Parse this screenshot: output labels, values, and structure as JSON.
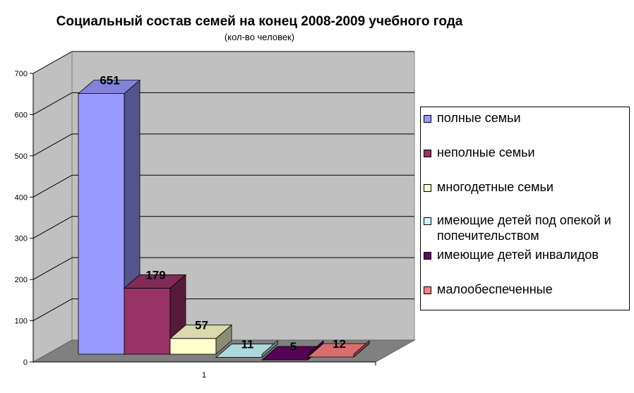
{
  "chart_data": {
    "type": "bar",
    "title": "Социальный состав семей на конец 2008-2009 учебного года",
    "subtitle": "(кол-во человек)",
    "categories": [
      "1"
    ],
    "ylim": [
      0,
      700
    ],
    "yticks": [
      0,
      100,
      200,
      300,
      400,
      500,
      600,
      700
    ],
    "grid": true,
    "legend_position": "right",
    "series": [
      {
        "name": "полные семьи",
        "values": [
          651
        ],
        "color": "#9999ff"
      },
      {
        "name": "неполные семьи",
        "values": [
          179
        ],
        "color": "#993366"
      },
      {
        "name": "многодетные семьи",
        "values": [
          57
        ],
        "color": "#ffffcc"
      },
      {
        "name": "имеющие детей под опекой и попечительством",
        "values": [
          11
        ],
        "color": "#ccffff"
      },
      {
        "name": "имеющие детей инвалидов",
        "values": [
          5
        ],
        "color": "#660066"
      },
      {
        "name": "малообеспеченные",
        "values": [
          12
        ],
        "color": "#ff8080"
      }
    ]
  }
}
